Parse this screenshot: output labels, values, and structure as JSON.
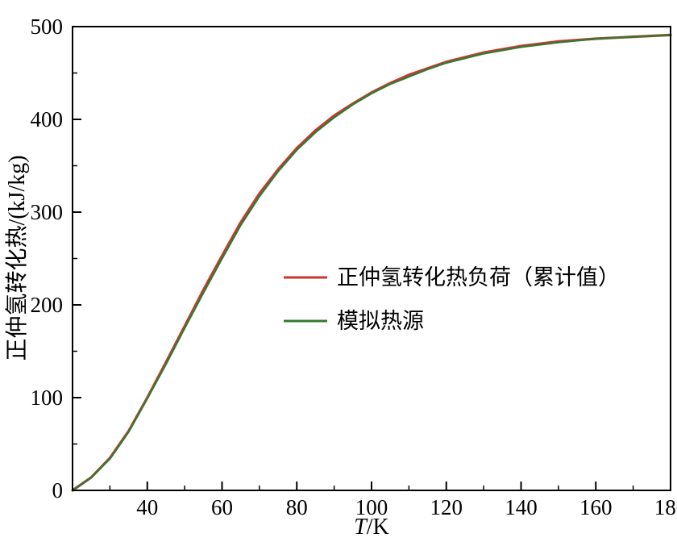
{
  "chart_data": {
    "type": "line",
    "title": "",
    "xlabel": "T/K",
    "xlabel_parts": [
      "T",
      "/K"
    ],
    "ylabel": "正仲氢转化热/(kJ/kg)",
    "xlim": [
      20,
      180
    ],
    "ylim": [
      0,
      500
    ],
    "xticks": [
      40,
      60,
      80,
      100,
      120,
      140,
      160,
      180
    ],
    "yticks": [
      0,
      100,
      200,
      300,
      400,
      500
    ],
    "x_minor_step": 10,
    "y_minor_step": 50,
    "grid": false,
    "legend_position": "inside-center-right",
    "axis_color": "#000000",
    "series": [
      {
        "name": "正仲氢转化热负荷（累计值）",
        "color": "#cf3431",
        "x": [
          20,
          25,
          30,
          35,
          40,
          45,
          50,
          55,
          60,
          65,
          70,
          75,
          80,
          85,
          90,
          95,
          100,
          105,
          110,
          115,
          120,
          130,
          140,
          150,
          160,
          170,
          180
        ],
        "values": [
          0,
          14,
          35,
          64,
          100,
          138,
          177,
          216,
          253,
          289,
          320,
          346,
          369,
          388,
          404,
          417,
          429,
          439,
          448,
          455,
          462,
          472,
          479,
          484,
          487,
          489,
          491
        ]
      },
      {
        "name": "模拟热源",
        "color": "#35792f",
        "x": [
          20,
          25,
          30,
          35,
          40,
          45,
          50,
          55,
          60,
          65,
          70,
          75,
          80,
          85,
          90,
          95,
          100,
          105,
          110,
          115,
          120,
          130,
          140,
          150,
          160,
          170,
          180
        ],
        "values": [
          0,
          14,
          34,
          63,
          99,
          136,
          175,
          213,
          250,
          286,
          317,
          344,
          367,
          386,
          402,
          416,
          428,
          438,
          446,
          454,
          461,
          471,
          478,
          483,
          487,
          489,
          491
        ]
      }
    ]
  }
}
